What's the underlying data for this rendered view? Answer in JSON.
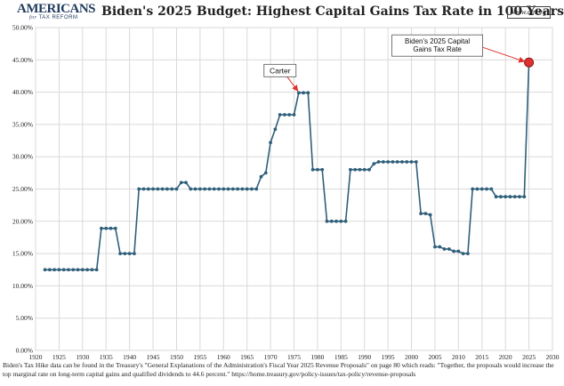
{
  "header": {
    "logo_main": "AMERICANS",
    "logo_for": "for",
    "logo_sub": "TAX REFORM",
    "title": "Biden's 2025 Budget: Highest Capital Gains Tax Rate in 100 Years",
    "url": "www.atr.org"
  },
  "chart_data": {
    "type": "line",
    "title": "Biden's 2025 Budget: Highest Capital Gains Tax Rate in 100 Years",
    "xlabel": "",
    "ylabel": "",
    "xlim": [
      1920,
      2030
    ],
    "ylim": [
      0,
      50
    ],
    "xticks": [
      1920,
      1925,
      1930,
      1935,
      1940,
      1945,
      1950,
      1955,
      1960,
      1965,
      1970,
      1975,
      1980,
      1985,
      1990,
      1995,
      2000,
      2005,
      2010,
      2015,
      2020,
      2025,
      2030
    ],
    "yticks": [
      "0.00%",
      "5.00%",
      "10.00%",
      "15.00%",
      "20.00%",
      "25.00%",
      "30.00%",
      "35.00%",
      "40.00%",
      "45.00%",
      "50.00%"
    ],
    "grid": true,
    "legend": "none",
    "line_color": "#2f5f7a",
    "highlight_color": "#e03030",
    "x": [
      1922,
      1923,
      1924,
      1925,
      1926,
      1927,
      1928,
      1929,
      1930,
      1931,
      1932,
      1933,
      1934,
      1935,
      1936,
      1937,
      1938,
      1939,
      1940,
      1941,
      1942,
      1943,
      1944,
      1945,
      1946,
      1947,
      1948,
      1949,
      1950,
      1951,
      1952,
      1953,
      1954,
      1955,
      1956,
      1957,
      1958,
      1959,
      1960,
      1961,
      1962,
      1963,
      1964,
      1965,
      1966,
      1967,
      1968,
      1969,
      1970,
      1971,
      1972,
      1973,
      1974,
      1975,
      1976,
      1977,
      1978,
      1979,
      1980,
      1981,
      1982,
      1983,
      1984,
      1985,
      1986,
      1987,
      1988,
      1989,
      1990,
      1991,
      1992,
      1993,
      1994,
      1995,
      1996,
      1997,
      1998,
      1999,
      2000,
      2001,
      2002,
      2003,
      2004,
      2005,
      2006,
      2007,
      2008,
      2009,
      2010,
      2011,
      2012,
      2013,
      2014,
      2015,
      2016,
      2017,
      2018,
      2019,
      2020,
      2021,
      2022,
      2023,
      2024,
      2025
    ],
    "values": [
      12.5,
      12.5,
      12.5,
      12.5,
      12.5,
      12.5,
      12.5,
      12.5,
      12.5,
      12.5,
      12.5,
      12.5,
      18.9,
      18.9,
      18.9,
      18.9,
      15.0,
      15.0,
      15.0,
      15.0,
      25.0,
      25.0,
      25.0,
      25.0,
      25.0,
      25.0,
      25.0,
      25.0,
      25.0,
      26.0,
      26.0,
      25.0,
      25.0,
      25.0,
      25.0,
      25.0,
      25.0,
      25.0,
      25.0,
      25.0,
      25.0,
      25.0,
      25.0,
      25.0,
      25.0,
      25.0,
      26.9,
      27.5,
      32.2,
      34.25,
      36.5,
      36.5,
      36.5,
      36.5,
      39.9,
      39.9,
      39.9,
      28.0,
      28.0,
      28.0,
      20.0,
      20.0,
      20.0,
      20.0,
      20.0,
      28.0,
      28.0,
      28.0,
      28.0,
      28.0,
      28.9,
      29.2,
      29.2,
      29.2,
      29.2,
      29.2,
      29.2,
      29.2,
      29.2,
      29.2,
      21.2,
      21.2,
      21.0,
      16.05,
      16.05,
      15.7,
      15.7,
      15.35,
      15.35,
      15.0,
      15.0,
      25.0,
      25.0,
      25.0,
      25.0,
      25.0,
      23.8,
      23.8,
      23.8,
      23.8,
      23.8,
      23.8,
      23.8,
      44.6
    ],
    "annotations": [
      {
        "label": "Carter",
        "x": 1976,
        "y": 39.9
      },
      {
        "label": "Biden's 2025 Capital Gains Tax Rate",
        "x": 2025,
        "y": 44.6
      }
    ]
  },
  "footnote": "Biden's Tax Hike data can be found in the Treasury's \"General Explanations of the Administration's Fiscal Year 2025 Revenue Proposals\" on page 80 which reads: \"Together, the proposals would increase the top marginal rate on long-term capital gains and qualified dividends to 44.6 percent.\"  https://home.treasury.gov/policy-issues/tax-policy/revenue-proposals"
}
